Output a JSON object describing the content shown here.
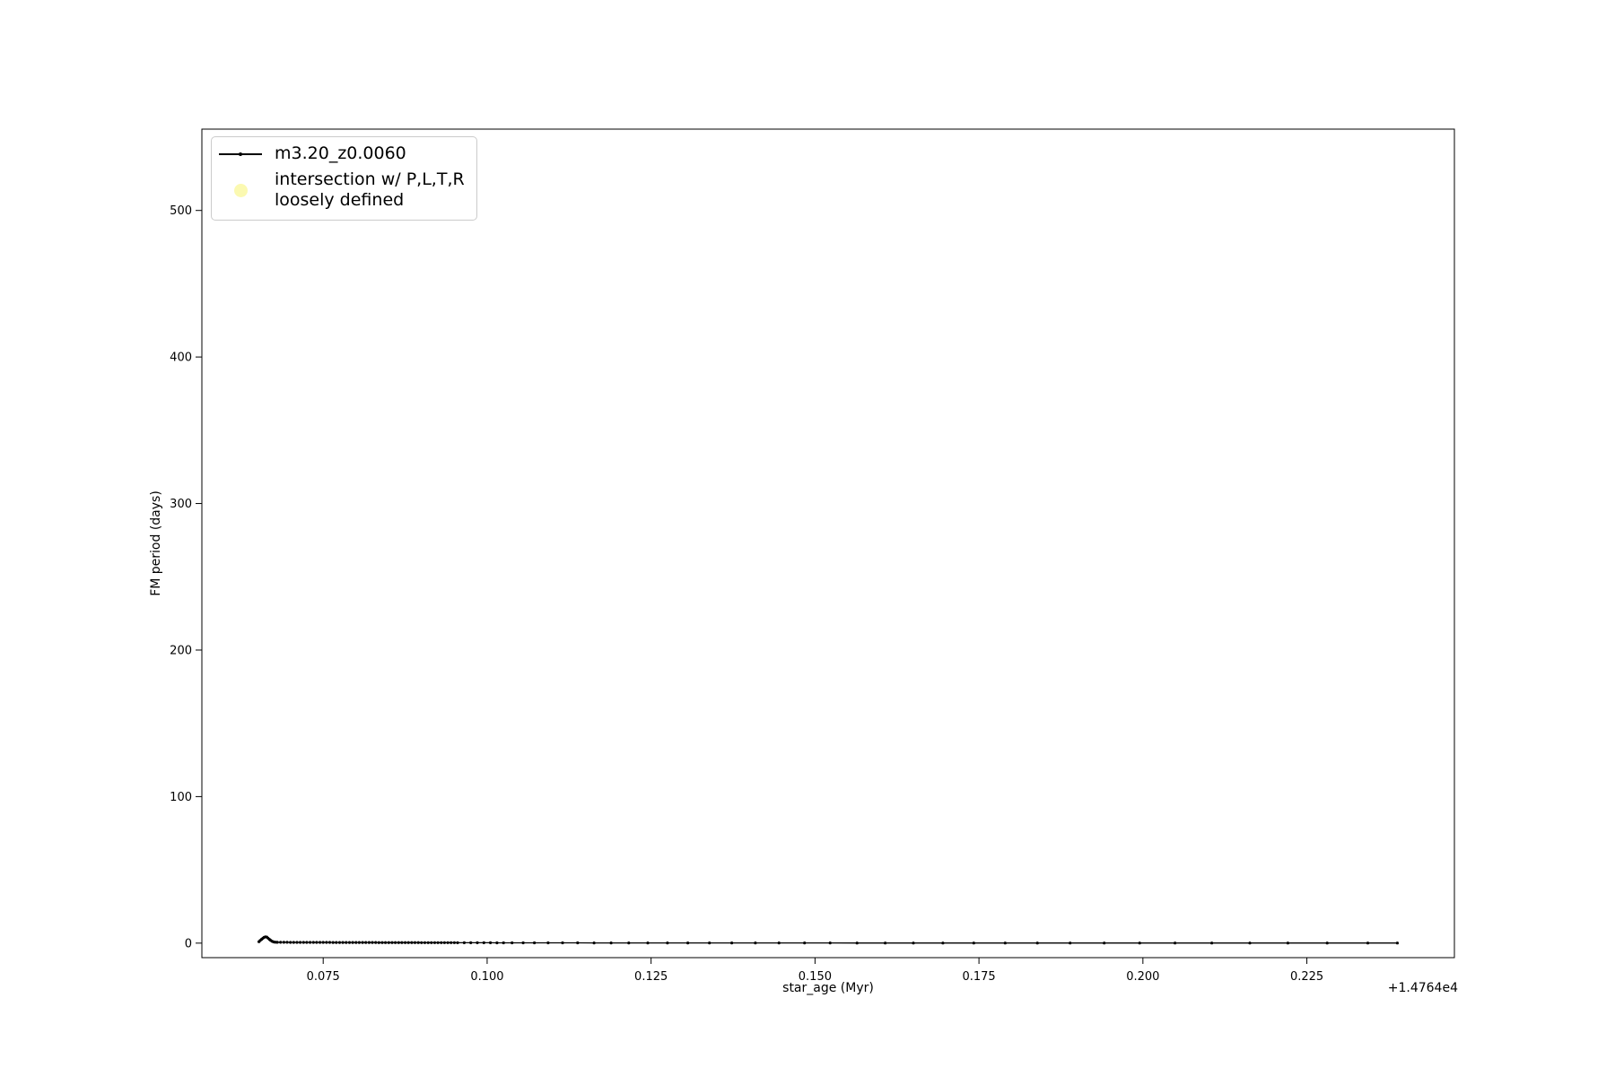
{
  "figure": {
    "background": "#ffffff"
  },
  "chart_data": {
    "type": "line",
    "title": "",
    "xlabel": "star_age (Myr)",
    "ylabel": "FM period (days)",
    "x_offset_label": "+1.4764e4",
    "xlim": [
      0.0565,
      0.2475
    ],
    "ylim": [
      -9.9,
      555.5
    ],
    "xticks": [
      0.075,
      0.1,
      0.125,
      0.15,
      0.175,
      0.2,
      0.225
    ],
    "xtick_labels": [
      "0.075",
      "0.100",
      "0.125",
      "0.150",
      "0.175",
      "0.200",
      "0.225"
    ],
    "yticks": [
      0,
      100,
      200,
      300,
      400,
      500
    ],
    "ytick_labels": [
      "0",
      "100",
      "200",
      "300",
      "400",
      "500"
    ],
    "grid": false,
    "legend_position": "upper left",
    "legend": [
      {
        "label": "m3.20_z0.0060",
        "type": "line-with-point-marker",
        "color": "#000000"
      },
      {
        "label_lines": [
          "intersection w/ P,L,T,R",
          "loosely defined"
        ],
        "type": "scatter-marker",
        "color": "#fbf9b1"
      }
    ],
    "series": [
      {
        "name": "m3.20_z0.0060",
        "color": "#000000",
        "marker": "point",
        "hook_points": [
          [
            0.0652,
            1.0
          ],
          [
            0.0654,
            1.8
          ],
          [
            0.0656,
            2.6
          ],
          [
            0.0658,
            3.3
          ],
          [
            0.066,
            3.9
          ],
          [
            0.0662,
            4.3
          ],
          [
            0.0664,
            4.1
          ],
          [
            0.0666,
            3.4
          ],
          [
            0.0668,
            2.6
          ],
          [
            0.067,
            1.9
          ],
          [
            0.0672,
            1.3
          ],
          [
            0.0674,
            0.9
          ],
          [
            0.0676,
            0.7
          ],
          [
            0.0678,
            0.6
          ]
        ],
        "dense_segments": [
          {
            "x0": 0.068,
            "x1": 0.095,
            "dx": 0.0005,
            "y0": 0.55,
            "y1": 0.3
          },
          {
            "x0": 0.0955,
            "x1": 0.1015,
            "dx": 0.001,
            "y0": 0.28,
            "y1": 0.22
          }
        ],
        "tail_points": [
          [
            0.1025,
            0.2
          ],
          [
            0.1038,
            0.19
          ],
          [
            0.1055,
            0.19
          ],
          [
            0.1072,
            0.18
          ],
          [
            0.1093,
            0.18
          ],
          [
            0.1115,
            0.17
          ],
          [
            0.1138,
            0.17
          ],
          [
            0.1163,
            0.16
          ],
          [
            0.1189,
            0.16
          ],
          [
            0.1216,
            0.15
          ],
          [
            0.1245,
            0.15
          ],
          [
            0.1275,
            0.14
          ],
          [
            0.1306,
            0.14
          ],
          [
            0.1339,
            0.13
          ],
          [
            0.1373,
            0.13
          ],
          [
            0.1409,
            0.12
          ],
          [
            0.1445,
            0.12
          ],
          [
            0.1484,
            0.11
          ],
          [
            0.1523,
            0.11
          ],
          [
            0.1564,
            0.1
          ],
          [
            0.1607,
            0.1
          ],
          [
            0.165,
            0.09
          ],
          [
            0.1695,
            0.09
          ],
          [
            0.1742,
            0.08
          ],
          [
            0.179,
            0.08
          ],
          [
            0.1839,
            0.07
          ],
          [
            0.1889,
            0.07
          ],
          [
            0.1941,
            0.06
          ],
          [
            0.1995,
            0.06
          ],
          [
            0.2049,
            0.06
          ],
          [
            0.2105,
            0.05
          ],
          [
            0.2163,
            0.05
          ],
          [
            0.2221,
            0.05
          ],
          [
            0.2281,
            0.05
          ],
          [
            0.2343,
            0.05
          ],
          [
            0.2388,
            0.05
          ]
        ]
      },
      {
        "name": "intersection w/ P,L,T,R loosely defined",
        "color": "#fbf9b1",
        "marker": "circle",
        "points": []
      }
    ]
  }
}
